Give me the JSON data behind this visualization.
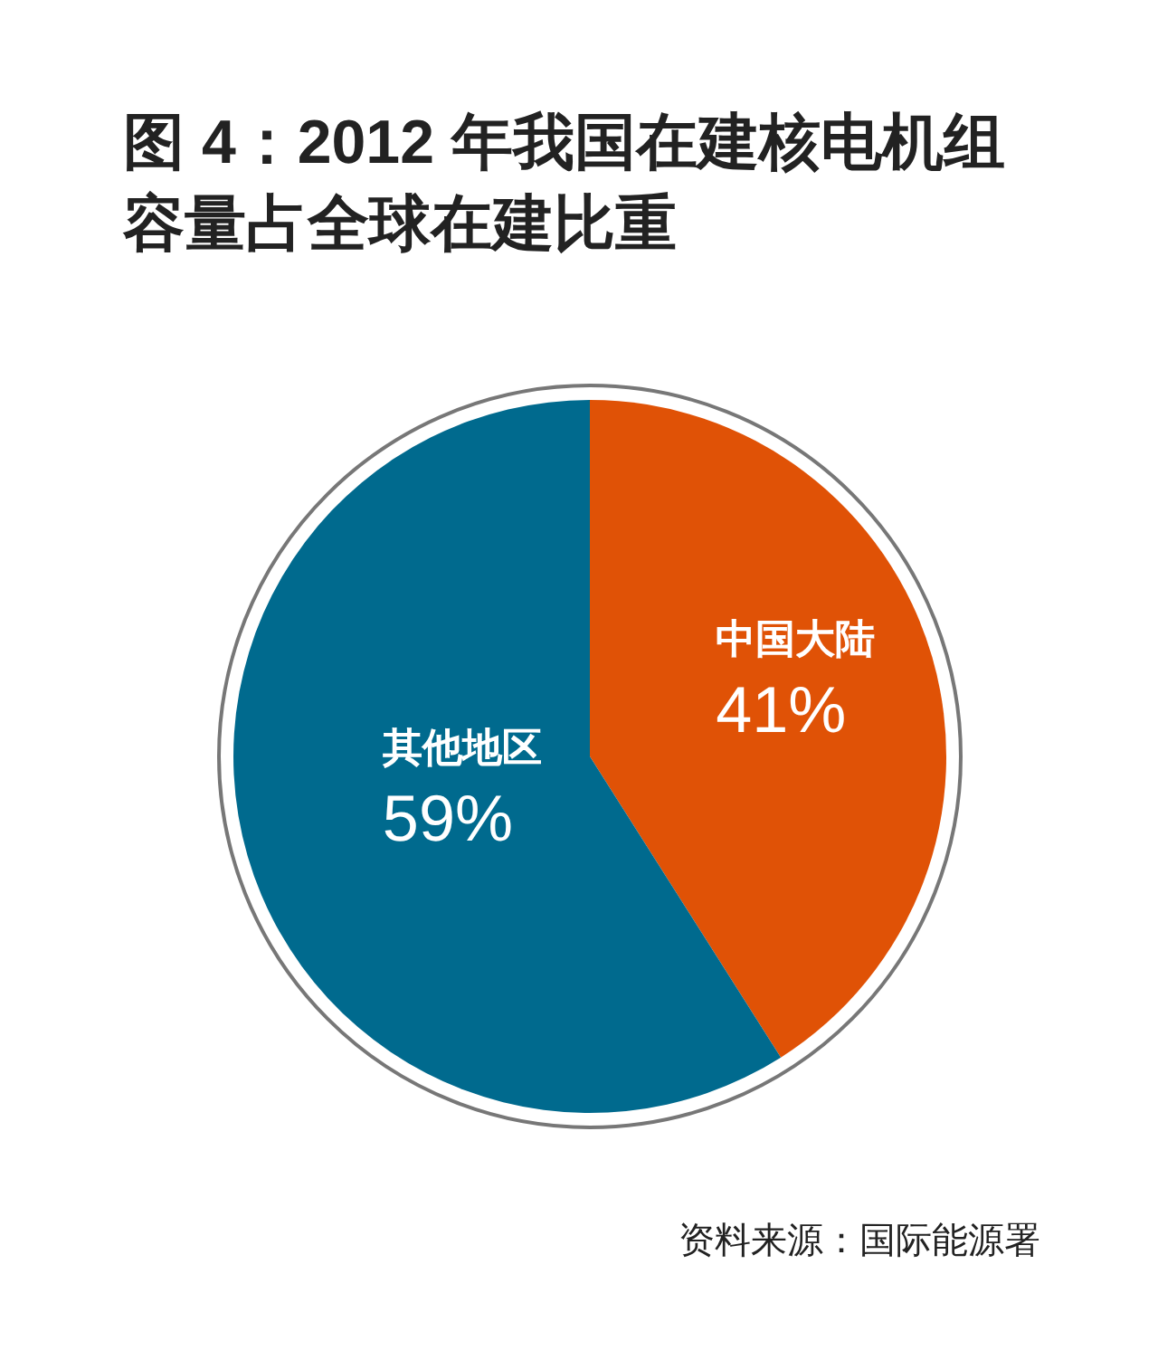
{
  "chart_data": {
    "type": "pie",
    "title": "图 4：2012 年我国在建核电机组容量占全球在建比重",
    "categories": [
      "中国大陆",
      "其他地区"
    ],
    "values": [
      41,
      59
    ],
    "colors": [
      "#e05206",
      "#006a8e"
    ],
    "value_labels": [
      "41%",
      "59%"
    ],
    "annotations": [
      "资料来源：国际能源署"
    ]
  }
}
